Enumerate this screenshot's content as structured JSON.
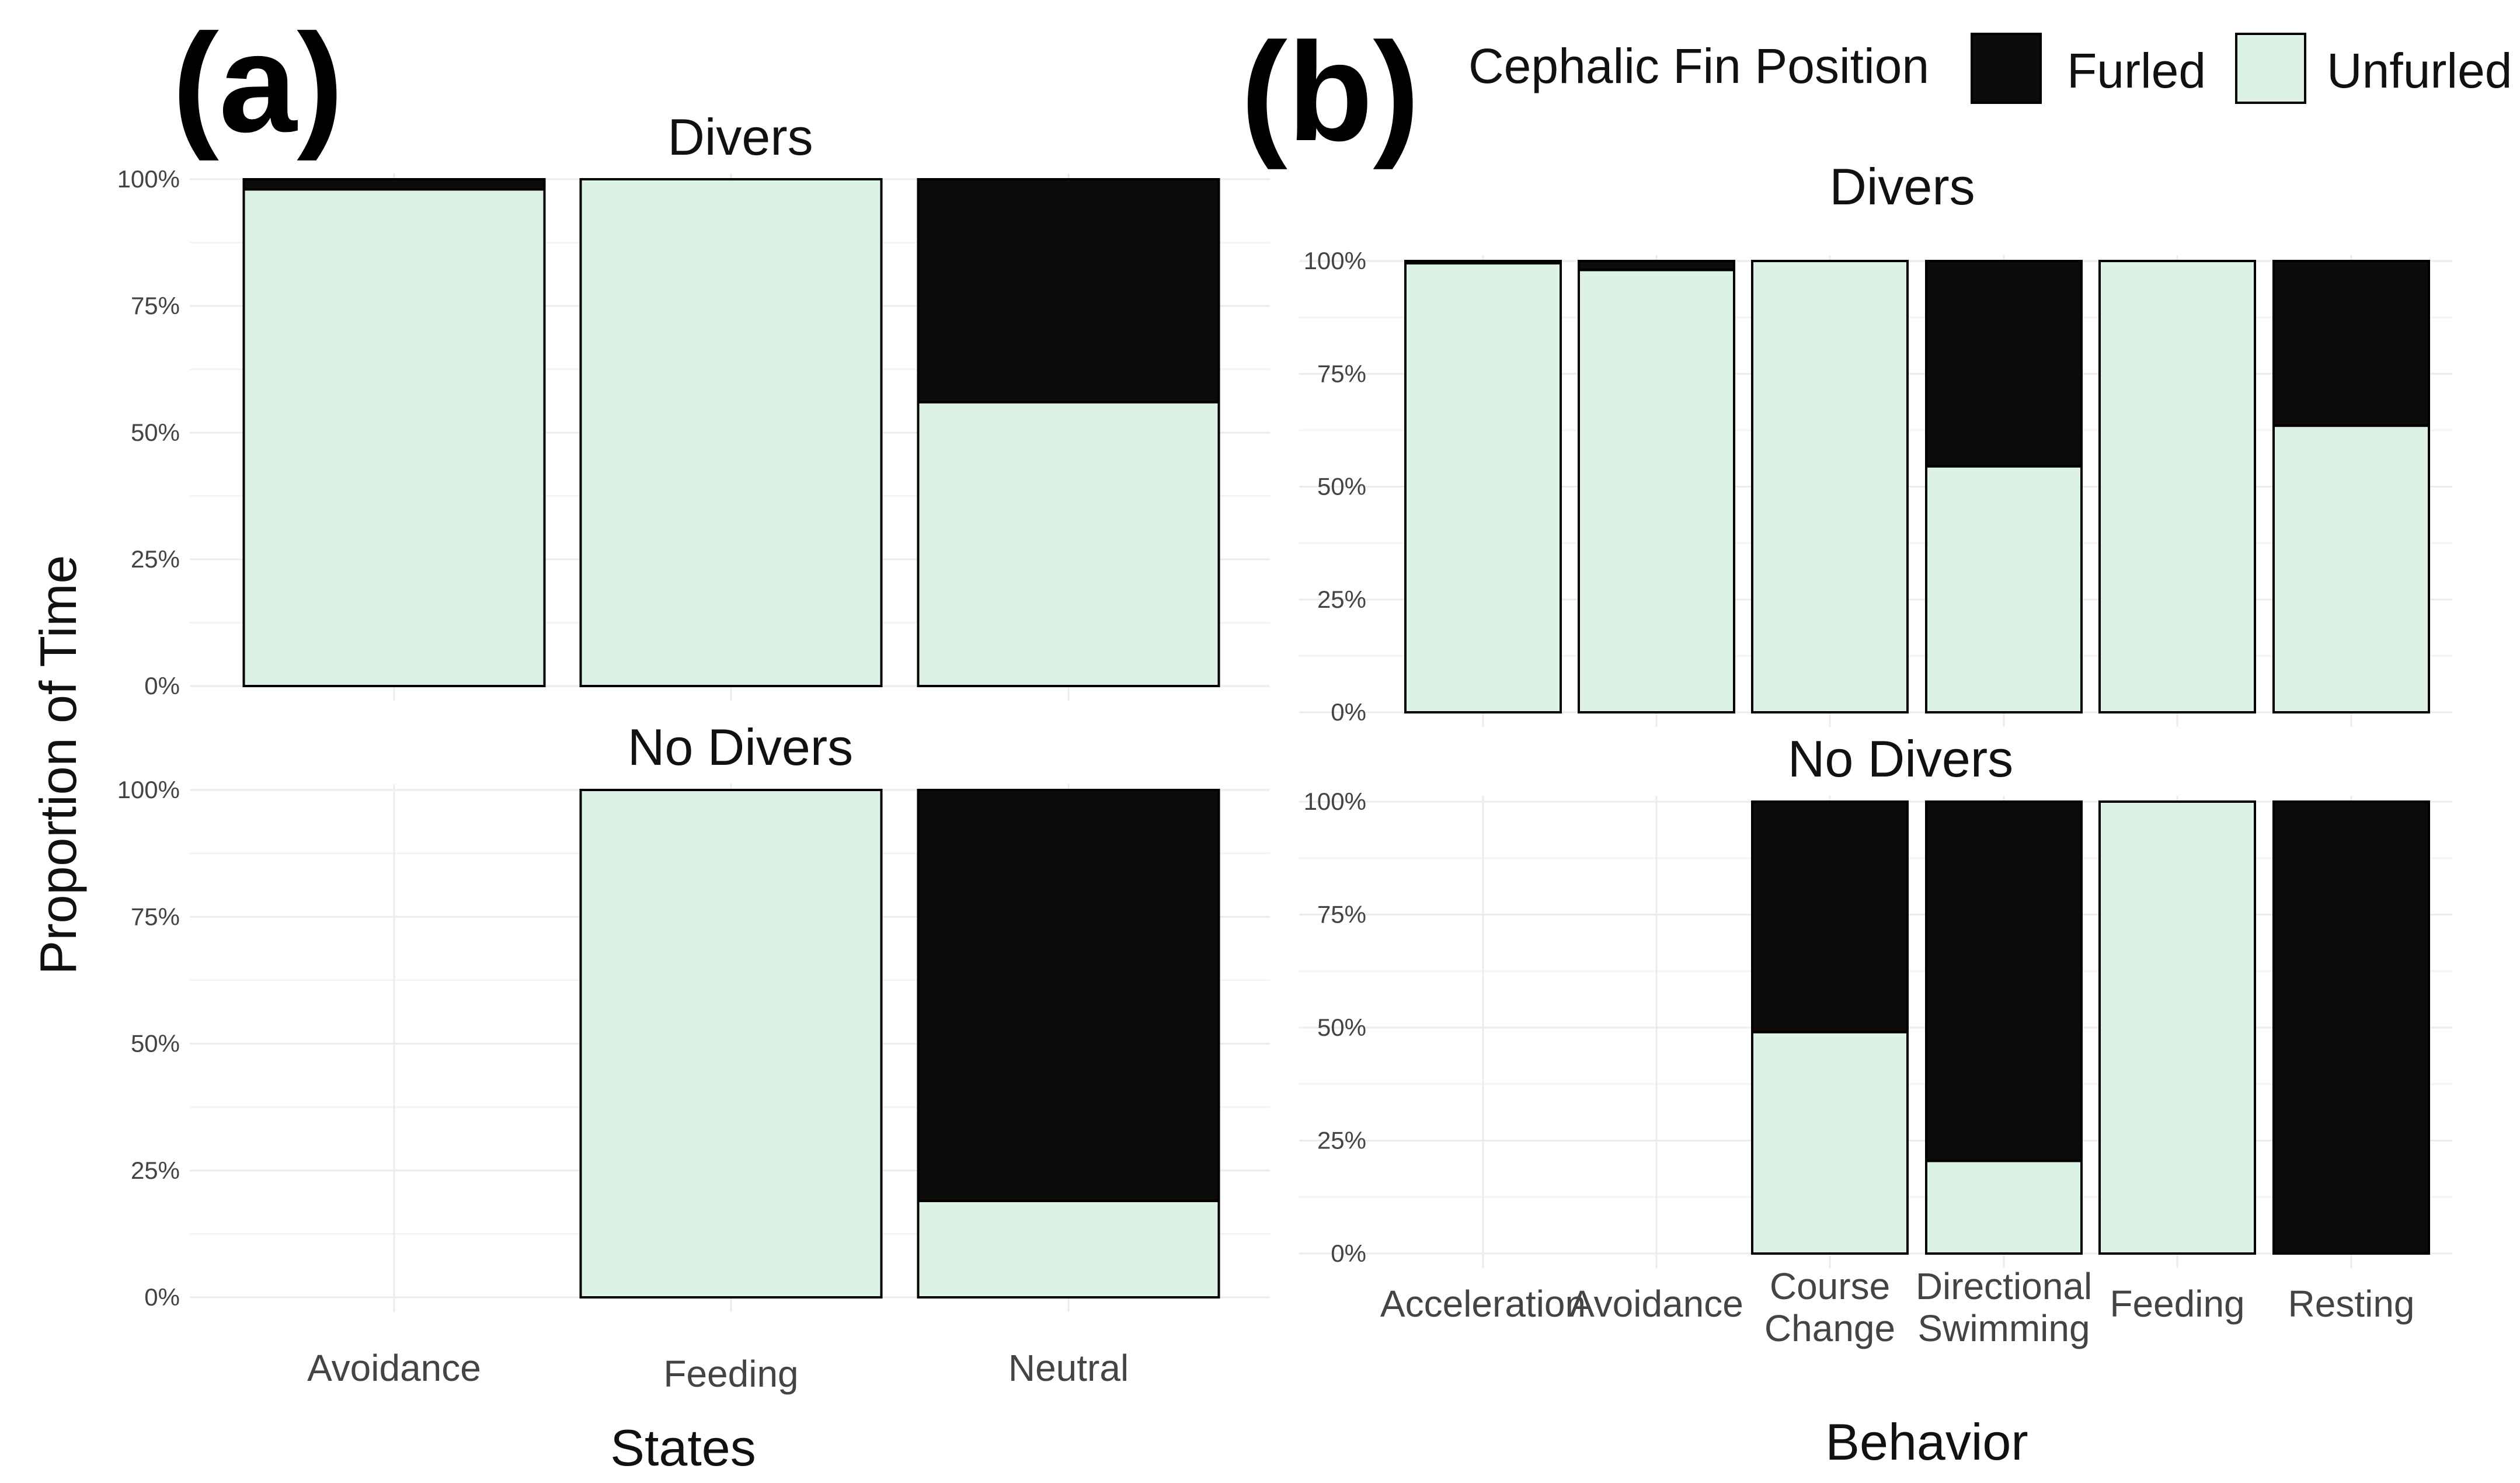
{
  "figure": {
    "colors": {
      "furled": "#0d0a0a",
      "unfurled": "#dcf2e4",
      "grid": "#ececec",
      "outline": "#000000"
    },
    "legend": {
      "title": "Cephalic Fin Position",
      "items": [
        "Furled",
        "Unfurled"
      ]
    },
    "y_axis_title": "Proportion of Time"
  },
  "chart_data": [
    {
      "type": "bar",
      "stacked": true,
      "panel_label": "(a)",
      "xlabel": "States",
      "ylabel": "Proportion of Time",
      "y_ticks": [
        "0%",
        "25%",
        "50%",
        "75%",
        "100%"
      ],
      "ylim": [
        0,
        100
      ],
      "categories": [
        "Avoidance",
        "Feeding",
        "Neutral"
      ],
      "facets": [
        {
          "title": "Divers",
          "series": [
            {
              "name": "Unfurled",
              "values": [
                98,
                100,
                56
              ]
            },
            {
              "name": "Furled",
              "values": [
                2,
                0,
                44
              ]
            }
          ]
        },
        {
          "title": "No Divers",
          "series": [
            {
              "name": "Unfurled",
              "values": [
                null,
                100,
                19
              ]
            },
            {
              "name": "Furled",
              "values": [
                null,
                0,
                81
              ]
            }
          ]
        }
      ]
    },
    {
      "type": "bar",
      "stacked": true,
      "panel_label": "(b)",
      "xlabel": "Behavior",
      "ylabel": "Proportion of Time",
      "y_ticks": [
        "0%",
        "25%",
        "50%",
        "75%",
        "100%"
      ],
      "ylim": [
        0,
        100
      ],
      "categories": [
        "Acceleration",
        "Avoidance",
        "Course Change",
        "Directional Swimming",
        "Feeding",
        "Resting"
      ],
      "category_lines": [
        [
          "Acceleration"
        ],
        [
          "Avoidance"
        ],
        [
          "Course",
          "Change"
        ],
        [
          "Directional",
          "Swimming"
        ],
        [
          "Feeding"
        ],
        [
          "Resting"
        ]
      ],
      "facets": [
        {
          "title": "Divers",
          "series": [
            {
              "name": "Unfurled",
              "values": [
                99.5,
                98,
                100,
                54.5,
                100,
                63.5
              ]
            },
            {
              "name": "Furled",
              "values": [
                0.5,
                2,
                0,
                45.5,
                0,
                36.5
              ]
            }
          ]
        },
        {
          "title": "No Divers",
          "series": [
            {
              "name": "Unfurled",
              "values": [
                null,
                null,
                49,
                20.5,
                100,
                0
              ]
            },
            {
              "name": "Furled",
              "values": [
                null,
                null,
                51,
                79.5,
                0,
                100
              ]
            }
          ]
        }
      ]
    }
  ]
}
